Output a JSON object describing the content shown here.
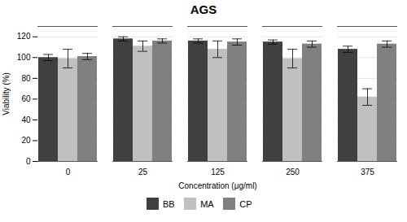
{
  "chart_data": {
    "type": "bar",
    "title": "AGS",
    "xlabel": "Concentration (μg/ml)",
    "ylabel": "Viability (%)",
    "categories": [
      "0",
      "25",
      "125",
      "250",
      "375"
    ],
    "series": [
      {
        "name": "BB",
        "color": "#404040",
        "values": [
          100,
          118,
          116,
          115,
          108
        ],
        "errors": [
          3,
          2,
          2,
          2,
          3
        ]
      },
      {
        "name": "MA",
        "color": "#c0c0c0",
        "values": [
          99,
          111,
          108,
          99,
          62
        ],
        "errors": [
          9,
          5,
          8,
          9,
          8
        ]
      },
      {
        "name": "CP",
        "color": "#808080",
        "values": [
          101,
          116,
          115,
          113,
          113
        ],
        "errors": [
          3,
          2,
          3,
          3,
          3
        ]
      }
    ],
    "ylim": [
      0,
      130
    ],
    "yticks": [
      0,
      20,
      40,
      60,
      80,
      100,
      120
    ],
    "grid": true,
    "legend": "bottom"
  }
}
